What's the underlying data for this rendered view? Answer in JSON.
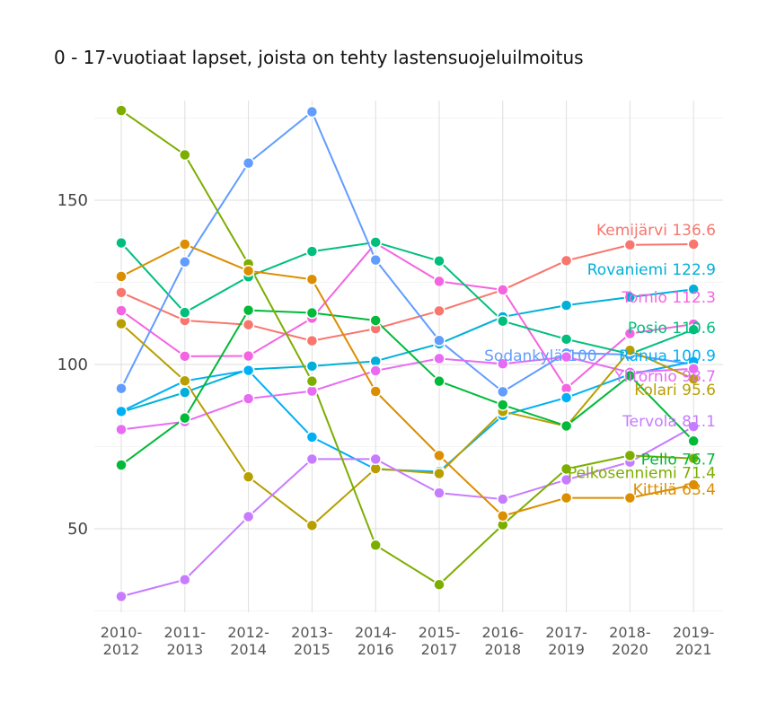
{
  "chart_data": {
    "type": "line",
    "title": "0 - 17-vuotiaat lapset, joista on tehty lastensuojeluilmoitus",
    "xlabel": "",
    "ylabel": "",
    "categories": [
      [
        "2010-",
        "2012"
      ],
      [
        "2011-",
        "2013"
      ],
      [
        "2012-",
        "2014"
      ],
      [
        "2013-",
        "2015"
      ],
      [
        "2014-",
        "2016"
      ],
      [
        "2015-",
        "2017"
      ],
      [
        "2016-",
        "2018"
      ],
      [
        "2017-",
        "2019"
      ],
      [
        "2018-",
        "2020"
      ],
      [
        "2019-",
        "2021"
      ]
    ],
    "ylim": [
      25,
      180
    ],
    "yticks": [
      50,
      100,
      150
    ],
    "grid": true,
    "legend": "none (direct labels at line ends)",
    "series": [
      {
        "name": "Kemijärvi",
        "end_label": "Kemijärvi 136.6",
        "color": "#F8766D",
        "values": [
          121.9,
          113.4,
          112.1,
          107.2,
          110.9,
          116.3,
          122.7,
          131.6,
          136.4,
          136.6
        ]
      },
      {
        "name": "Rovaniemi",
        "end_label": "Rovaniemi 122.9",
        "color": "#00B0D8",
        "values": [
          85.5,
          91.5,
          98.5,
          99.5,
          101.0,
          106.3,
          114.5,
          118.0,
          120.5,
          122.9
        ]
      },
      {
        "name": "Tornio",
        "end_label": "Tornio 112.3",
        "color": "#F464E0",
        "values": [
          116.4,
          102.5,
          102.6,
          114.1,
          136.9,
          125.3,
          122.7,
          92.7,
          109.4,
          112.3
        ]
      },
      {
        "name": "Posio",
        "end_label": "Posio 110.6",
        "color": "#00BF7D",
        "values": [
          137.0,
          115.8,
          126.7,
          134.4,
          137.2,
          131.5,
          113.2,
          107.7,
          103.2,
          110.6
        ]
      },
      {
        "name": "Sodankylä",
        "end_label": "Sodankylä 100.",
        "color": "#619CFF",
        "values": [
          92.7,
          131.2,
          161.3,
          176.9,
          131.8,
          107.3,
          91.7,
          103.5,
          103.0,
          100.0
        ]
      },
      {
        "name": "Ranua",
        "end_label": "Ranua 100.9",
        "color": "#00B0F6",
        "values": [
          85.7,
          95.0,
          98.2,
          77.9,
          68.1,
          67.4,
          84.5,
          89.9,
          97.0,
          100.9
        ]
      },
      {
        "name": "Ylitornio",
        "end_label": "Ylitornio 98.7",
        "color": "#E76BF3",
        "values": [
          80.2,
          82.6,
          89.6,
          91.9,
          98.1,
          101.8,
          100.2,
          102.3,
          97.6,
          98.7
        ]
      },
      {
        "name": "Kolari",
        "end_label": "Kolari 95.6",
        "color": "#B79F00",
        "values": [
          112.4,
          95.0,
          65.8,
          51.0,
          68.3,
          66.8,
          85.7,
          81.2,
          104.3,
          95.6
        ]
      },
      {
        "name": "Tervola",
        "end_label": "Tervola 81.1",
        "color": "#C77CFF",
        "values": [
          29.4,
          34.5,
          53.7,
          71.2,
          71.2,
          60.9,
          59.0,
          64.9,
          70.3,
          81.1
        ]
      },
      {
        "name": "Pello",
        "end_label": "Pello 76.7",
        "color": "#00BA38",
        "values": [
          69.4,
          83.7,
          116.5,
          115.7,
          113.4,
          94.9,
          87.7,
          81.3,
          96.6,
          76.7
        ]
      },
      {
        "name": "Pelkosenniemi",
        "end_label": "Pelkosenniemi 71.4",
        "color": "#7CAE00",
        "values": [
          177.3,
          163.8,
          130.6,
          94.9,
          45.0,
          33.0,
          51.2,
          68.2,
          72.3,
          71.4
        ]
      },
      {
        "name": "Kittilä",
        "end_label": "Kittilä 63.4",
        "color": "#DB8E00",
        "values": [
          126.8,
          136.6,
          128.5,
          125.9,
          91.8,
          72.3,
          53.9,
          59.4,
          59.4,
          63.4
        ]
      }
    ]
  }
}
